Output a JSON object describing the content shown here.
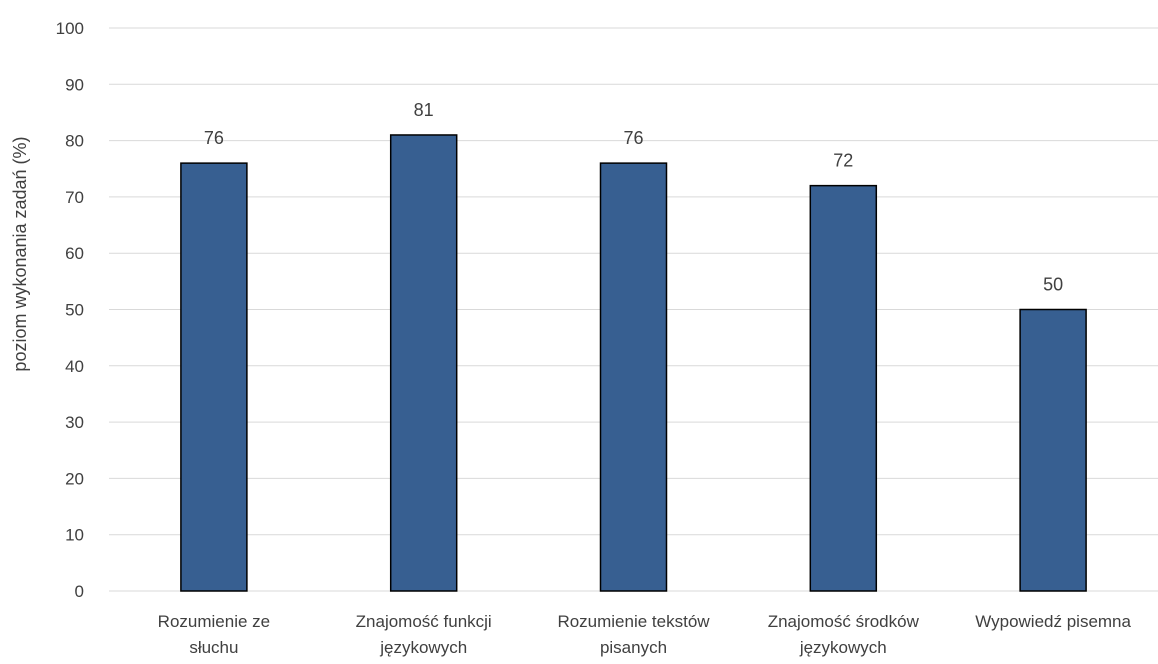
{
  "chart_data": {
    "type": "bar",
    "title": "",
    "xlabel": "",
    "ylabel": "poziom wykonania zadań (%)",
    "categories": [
      [
        "Rozumienie ze",
        "słuchu"
      ],
      [
        "Znajomość funkcji",
        "językowych"
      ],
      [
        "Rozumienie tekstów",
        "pisanych"
      ],
      [
        "Znajomość środków",
        "językowych"
      ],
      [
        "Wypowiedź pisemna"
      ]
    ],
    "values": [
      76,
      81,
      76,
      72,
      50
    ],
    "data_labels": [
      "76",
      "81",
      "76",
      "72",
      "50"
    ],
    "ylim": [
      0,
      100
    ],
    "yticks": [
      "0",
      "10",
      "20",
      "30",
      "40",
      "50",
      "60",
      "70",
      "80",
      "90",
      "100"
    ],
    "grid": true,
    "legend": "none",
    "colors": {
      "bar": "#375f91",
      "bar_edge": "#000000",
      "grid": "#d9d9d9",
      "text": "#404040"
    }
  }
}
